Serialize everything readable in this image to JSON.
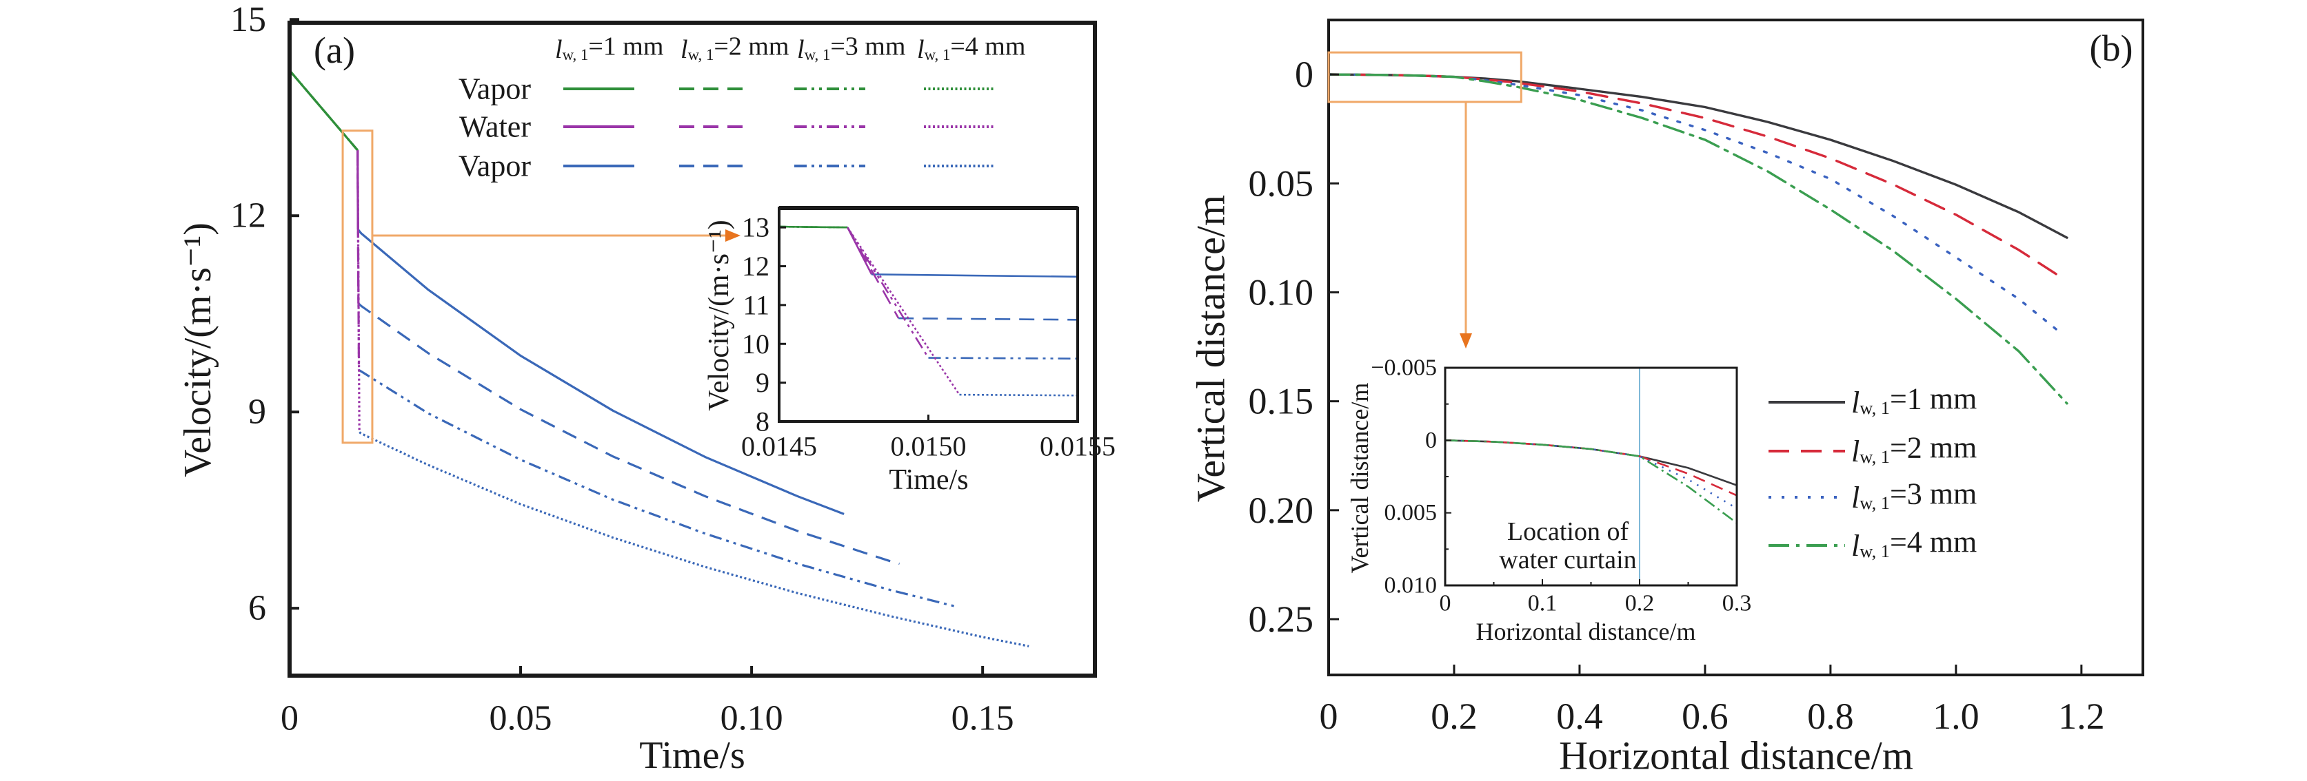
{
  "chart_data": [
    {
      "type": "line",
      "panel_label": "(a)",
      "xlabel": "Time/s",
      "ylabel": "Velocity/(m·s⁻¹)",
      "xlim": [
        0,
        0.1743
      ],
      "ylim": [
        4.97,
        14.95
      ],
      "xticks": [
        0,
        0.05,
        0.1,
        0.15
      ],
      "xtick_labels": [
        "0",
        "0.05",
        "0.10",
        "0.15"
      ],
      "yticks": [
        6,
        9,
        12,
        15
      ],
      "ytick_labels": [
        "6",
        "9",
        "12",
        "15"
      ],
      "grid": false,
      "legend": {
        "placement": "top",
        "rows": [
          "Vapor",
          "Water",
          "Vapor"
        ],
        "columns": [
          {
            "var": "l",
            "sub": "w, 1",
            "value": "=1 mm"
          },
          {
            "var": "l",
            "sub": "w, 1",
            "value": "=2 mm"
          },
          {
            "var": "l",
            "sub": "w, 1",
            "value": "=3 mm"
          },
          {
            "var": "l",
            "sub": "w, 1",
            "value": "=4 mm"
          }
        ]
      },
      "row_colors": [
        "#2f8f3a",
        "#9a35a8",
        "#3a68b8"
      ],
      "line_styles": [
        "solid",
        "dashed",
        "dash-dot-dot",
        "dotted"
      ],
      "series": [
        {
          "vapor_1": [
            [
              0,
              14.22
            ],
            [
              0.014729,
              13.0
            ]
          ],
          "water": [
            [
              0.014729,
              13.0
            ],
            [
              0.01481,
              11.79
            ]
          ],
          "vapor_2": [
            [
              0.01481,
              11.79
            ],
            [
              0.0155,
              11.73
            ],
            [
              0.03,
              10.87
            ],
            [
              0.05,
              9.86
            ],
            [
              0.07,
              9.02
            ],
            [
              0.09,
              8.31
            ],
            [
              0.11,
              7.71
            ],
            [
              0.12,
              7.44
            ]
          ]
        },
        {
          "vapor_1": [
            [
              0,
              14.22
            ],
            [
              0.014729,
              13.0
            ]
          ],
          "water": [
            [
              0.014729,
              13.0
            ],
            [
              0.0149,
              10.66
            ]
          ],
          "vapor_2": [
            [
              0.0149,
              10.66
            ],
            [
              0.0155,
              10.62
            ],
            [
              0.03,
              9.9
            ],
            [
              0.05,
              9.04
            ],
            [
              0.07,
              8.32
            ],
            [
              0.09,
              7.71
            ],
            [
              0.11,
              7.18
            ],
            [
              0.13,
              6.72
            ],
            [
              0.132,
              6.68
            ]
          ]
        },
        {
          "vapor_1": [
            [
              0,
              14.22
            ],
            [
              0.014729,
              13.0
            ]
          ],
          "water": [
            [
              0.014729,
              13.0
            ],
            [
              0.015,
              9.64
            ]
          ],
          "vapor_2": [
            [
              0.015,
              9.64
            ],
            [
              0.0155,
              9.62
            ],
            [
              0.03,
              8.98
            ],
            [
              0.05,
              8.27
            ],
            [
              0.07,
              7.66
            ],
            [
              0.09,
              7.14
            ],
            [
              0.11,
              6.68
            ],
            [
              0.13,
              6.28
            ],
            [
              0.144,
              6.03
            ]
          ]
        },
        {
          "vapor_1": [
            [
              0,
              14.22
            ],
            [
              0.014729,
              13.0
            ]
          ],
          "water": [
            [
              0.014729,
              13.0
            ],
            [
              0.015104,
              8.69
            ]
          ],
          "vapor_2": [
            [
              0.015104,
              8.69
            ],
            [
              0.0155,
              8.67
            ],
            [
              0.03,
              8.19
            ],
            [
              0.05,
              7.59
            ],
            [
              0.07,
              7.08
            ],
            [
              0.09,
              6.63
            ],
            [
              0.11,
              6.23
            ],
            [
              0.13,
              5.88
            ],
            [
              0.15,
              5.56
            ],
            [
              0.16,
              5.42
            ]
          ]
        }
      ],
      "zoom_box": {
        "x": [
          0.0115,
          0.0179
        ],
        "y": [
          8.53,
          13.3
        ],
        "color": "#f0a868"
      },
      "arrow_color": "#e8741e",
      "inset": {
        "xlim": [
          0.0145,
          0.0155
        ],
        "ylim": [
          8,
          13.5
        ],
        "xticks": [
          0.0145,
          0.015,
          0.0155
        ],
        "xtick_labels": [
          "0.0145",
          "0.0150",
          "0.0155"
        ],
        "yticks": [
          8,
          9,
          10,
          11,
          12,
          13
        ],
        "ytick_labels": [
          "8",
          "9",
          "10",
          "11",
          "12",
          "13"
        ],
        "xlabel": "Time/s",
        "ylabel": "Velocity/(m·s⁻¹)"
      }
    },
    {
      "type": "line",
      "panel_label": "(b)",
      "xlabel": "Horizontal distance/m",
      "ylabel": "Vertical distance/m",
      "xlim": [
        0,
        1.298
      ],
      "ylim": [
        -0.025,
        0.2756
      ],
      "y_inverted": true,
      "xticks": [
        0,
        0.2,
        0.4,
        0.6,
        0.8,
        1.0,
        1.2
      ],
      "xtick_labels": [
        "0",
        "0.2",
        "0.4",
        "0.6",
        "0.8",
        "1.0",
        "1.2"
      ],
      "yticks": [
        0,
        0.05,
        0.1,
        0.15,
        0.2,
        0.25
      ],
      "ytick_labels": [
        "0",
        "0.05",
        "0.10",
        "0.15",
        "0.20",
        "0.25"
      ],
      "grid": false,
      "legend": {
        "placement": "center-right",
        "entries": [
          {
            "var": "l",
            "sub": "w, 1",
            "value": "=1 mm"
          },
          {
            "var": "l",
            "sub": "w, 1",
            "value": "=2 mm"
          },
          {
            "var": "l",
            "sub": "w, 1",
            "value": "=3 mm"
          },
          {
            "var": "l",
            "sub": "w, 1",
            "value": "=4 mm"
          }
        ]
      },
      "colors": [
        "#3a3a3e",
        "#d62a3a",
        "#3a62c0",
        "#3a9e50"
      ],
      "line_styles": [
        "solid",
        "dashed",
        "dotted",
        "dash-dot"
      ],
      "series": [
        [
          [
            0,
            0
          ],
          [
            0.05,
            0.0001
          ],
          [
            0.1,
            0.0003
          ],
          [
            0.15,
            0.0006
          ],
          [
            0.2,
            0.0011
          ],
          [
            0.25,
            0.0019
          ],
          [
            0.3,
            0.0031
          ],
          [
            0.4,
            0.0066
          ],
          [
            0.5,
            0.0103
          ],
          [
            0.6,
            0.015
          ],
          [
            0.7,
            0.0218
          ],
          [
            0.8,
            0.03
          ],
          [
            0.9,
            0.0397
          ],
          [
            1.0,
            0.0506
          ],
          [
            1.1,
            0.0632
          ],
          [
            1.177,
            0.0749
          ]
        ],
        [
          [
            0,
            0
          ],
          [
            0.05,
            0.0001
          ],
          [
            0.1,
            0.0003
          ],
          [
            0.15,
            0.0006
          ],
          [
            0.2,
            0.0011
          ],
          [
            0.25,
            0.0023
          ],
          [
            0.3,
            0.0038
          ],
          [
            0.4,
            0.0078
          ],
          [
            0.5,
            0.0133
          ],
          [
            0.6,
            0.02
          ],
          [
            0.7,
            0.0285
          ],
          [
            0.8,
            0.0385
          ],
          [
            0.9,
            0.0505
          ],
          [
            1.0,
            0.0644
          ],
          [
            1.1,
            0.0805
          ],
          [
            1.17,
            0.0935
          ]
        ],
        [
          [
            0,
            0
          ],
          [
            0.05,
            0.0001
          ],
          [
            0.1,
            0.0003
          ],
          [
            0.15,
            0.0006
          ],
          [
            0.2,
            0.0011
          ],
          [
            0.25,
            0.0027
          ],
          [
            0.3,
            0.0047
          ],
          [
            0.4,
            0.0095
          ],
          [
            0.5,
            0.0165
          ],
          [
            0.6,
            0.0255
          ],
          [
            0.7,
            0.036
          ],
          [
            0.8,
            0.048
          ],
          [
            0.9,
            0.065
          ],
          [
            1.0,
            0.084
          ],
          [
            1.1,
            0.103
          ],
          [
            1.16,
            0.117
          ]
        ],
        [
          [
            0,
            0
          ],
          [
            0.05,
            0.0001
          ],
          [
            0.1,
            0.0003
          ],
          [
            0.15,
            0.0006
          ],
          [
            0.2,
            0.0011
          ],
          [
            0.25,
            0.0032
          ],
          [
            0.3,
            0.0057
          ],
          [
            0.4,
            0.0117
          ],
          [
            0.5,
            0.02
          ],
          [
            0.6,
            0.03
          ],
          [
            0.7,
            0.0445
          ],
          [
            0.8,
            0.062
          ],
          [
            0.9,
            0.081
          ],
          [
            1.0,
            0.103
          ],
          [
            1.1,
            0.127
          ],
          [
            1.177,
            0.151
          ]
        ]
      ],
      "zoom_box": {
        "x": [
          0,
          0.307
        ],
        "y": [
          -0.0101,
          0.0126
        ],
        "color": "#f0a868"
      },
      "arrow_color": "#e8741e",
      "inset": {
        "xlim": [
          0,
          0.3
        ],
        "ylim": [
          -0.005,
          0.01
        ],
        "y_inverted": true,
        "xticks": [
          0,
          0.1,
          0.2,
          0.3
        ],
        "xtick_labels": [
          "0",
          "0.1",
          "0.2",
          "0.3"
        ],
        "yticks": [
          -0.005,
          0,
          0.005,
          0.01
        ],
        "ytick_labels": [
          "−0.005",
          "0",
          "0.005",
          "0.010"
        ],
        "xlabel": "Horizontal distance/m",
        "ylabel": "Vertical distance/m",
        "marker_line": {
          "x": 0.2,
          "color": "#7fb8d8"
        },
        "annotation": [
          "Location of",
          "water curtain"
        ]
      }
    }
  ]
}
